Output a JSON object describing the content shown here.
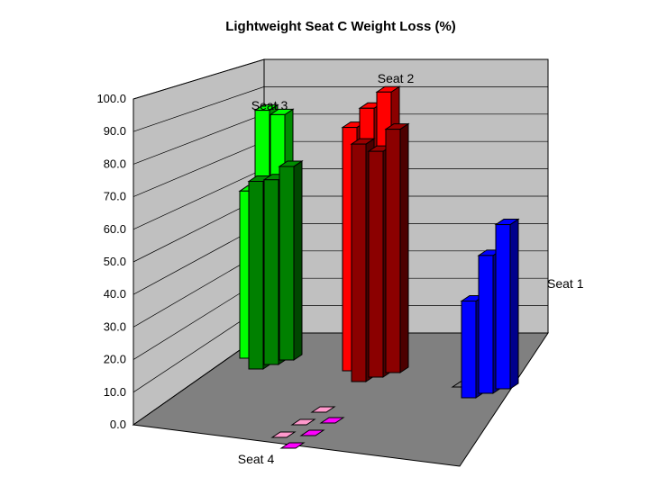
{
  "chart_data": {
    "type": "bar",
    "title": "Lightweight Seat C Weight Loss (%)",
    "xlabel": "",
    "ylabel": "",
    "ylim": [
      0,
      100
    ],
    "y_ticks": [
      "0.0",
      "10.0",
      "20.0",
      "30.0",
      "40.0",
      "50.0",
      "60.0",
      "70.0",
      "80.0",
      "90.0",
      "100.0"
    ],
    "projection": "3D",
    "grid": true,
    "legend": "none",
    "series": [
      {
        "name": "Seat 1",
        "values": [
          null,
          null,
          null,
          33,
          47,
          56
        ],
        "colors": [
          "#00ffff",
          "#00ffff",
          "#00ffff",
          "#0000ff",
          "#0000ff",
          "#0000ff"
        ]
      },
      {
        "name": "Seat 2",
        "values": [
          83,
          88,
          92,
          81,
          77,
          83
        ],
        "colors": [
          "#ff0000",
          "#ff0000",
          "#ff0000",
          "#8b0000",
          "#8b0000",
          "#8b0000"
        ]
      },
      {
        "name": "Seat 3",
        "values": [
          57,
          83,
          80,
          64,
          63,
          66
        ],
        "colors": [
          "#00ff00",
          "#00ff00",
          "#00ff00",
          "#008000",
          "#008000",
          "#008000"
        ]
      },
      {
        "name": "Seat 4",
        "values": [
          0,
          0,
          0,
          0,
          0,
          0
        ],
        "colors": [
          "#ff99cc",
          "#ff99cc",
          "#ff99cc",
          "#ff00ff",
          "#ff00ff",
          "#ff00ff"
        ]
      }
    ],
    "empty_floor_color": "#808080",
    "wall_color": "#c0c0c0",
    "floor_color": "#808080"
  }
}
